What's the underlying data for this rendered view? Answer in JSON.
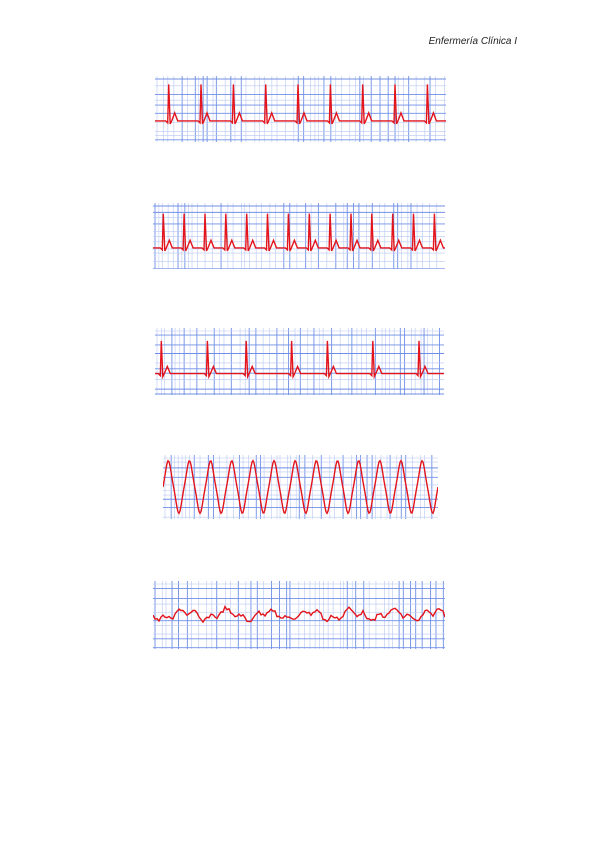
{
  "header": {
    "title": "Enfermería Clínica I"
  },
  "colors": {
    "grid": "#6f8fe6",
    "grid_light": "#b9c8f2",
    "trace": "#e3141b",
    "page": "#ffffff"
  },
  "strips": [
    {
      "rhythm": "narrow-complex",
      "beats": 9,
      "amplitude": 0.85,
      "irregular": false
    },
    {
      "rhythm": "rapid-narrow-complex",
      "beats": 14,
      "amplitude": 0.8,
      "irregular": false
    },
    {
      "rhythm": "irregular-narrow-complex",
      "beats": 7,
      "amplitude": 0.75,
      "irregular": true
    },
    {
      "rhythm": "sinusoidal-wide-complex",
      "beats": 13,
      "amplitude": 0.8,
      "irregular": false
    },
    {
      "rhythm": "chaotic-baseline",
      "beats": 0,
      "amplitude": 0.15,
      "irregular": true
    }
  ]
}
